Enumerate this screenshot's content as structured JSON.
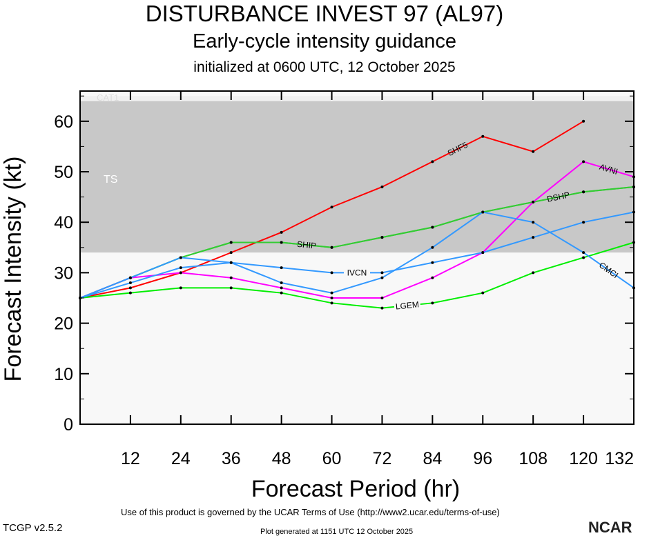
{
  "header": {
    "title": "DISTURBANCE INVEST 97 (AL97)",
    "subtitle": "Early-cycle intensity guidance",
    "init": "initialized at 0600 UTC, 12 October 2025"
  },
  "footer": {
    "terms": "Use of this product is governed by the UCAR Terms of Use (http://www2.ucar.edu/terms-of-use)",
    "generated": "Plot generated at 1151 UTC   12 October 2025",
    "version": "TCGP v2.5.2",
    "logo": "NCAR"
  },
  "chart_data": {
    "type": "line",
    "xlabel": "Forecast Period (hr)",
    "ylabel": "Forecast Intensity (kt)",
    "xlim": [
      0,
      132
    ],
    "ylim": [
      0,
      65
    ],
    "xticks": [
      12,
      24,
      36,
      48,
      60,
      72,
      84,
      96,
      108,
      120,
      132
    ],
    "yticks": [
      0,
      10,
      20,
      30,
      40,
      50,
      60
    ],
    "bands": [
      {
        "label": "TS",
        "from": 34,
        "to": 64,
        "color": "#c8c8c8"
      },
      {
        "label": "CAT1",
        "from": 64,
        "to": 65,
        "color": "#f0f0f0"
      }
    ],
    "series": [
      {
        "name": "SHF5",
        "color": "#ff0000",
        "x": [
          0,
          12,
          24,
          36,
          48,
          60,
          72,
          84,
          96,
          108,
          120
        ],
        "values": [
          25,
          27,
          30,
          34,
          38,
          43,
          47,
          52,
          57,
          54,
          60
        ]
      },
      {
        "name": "SHIP",
        "color": "#33cc33",
        "x": [
          0,
          12,
          24,
          36,
          48,
          60,
          72,
          84,
          96,
          108,
          120,
          132
        ],
        "values": [
          25,
          29,
          33,
          36,
          36,
          35,
          37,
          39,
          42,
          44,
          46,
          47
        ]
      },
      {
        "name": "DSHP",
        "color": "#33cc33",
        "x": [
          0,
          12,
          24,
          36,
          48,
          60,
          72,
          84,
          96,
          108,
          120,
          132
        ],
        "values": [
          25,
          29,
          33,
          36,
          36,
          35,
          37,
          39,
          42,
          44,
          46,
          47
        ]
      },
      {
        "name": "LGEM",
        "color": "#00ee00",
        "x": [
          0,
          12,
          24,
          36,
          48,
          60,
          72,
          84,
          96,
          108,
          120,
          132
        ],
        "values": [
          25,
          26,
          27,
          27,
          26,
          24,
          23,
          24,
          26,
          30,
          33,
          36
        ]
      },
      {
        "name": "AVNI",
        "color": "#ff00ff",
        "x": [
          0,
          12,
          24,
          36,
          48,
          60,
          72,
          84,
          96,
          108,
          120,
          132
        ],
        "values": [
          25,
          29,
          30,
          29,
          27,
          25,
          25,
          29,
          34,
          44,
          52,
          49
        ]
      },
      {
        "name": "IVCN",
        "color": "#3399ff",
        "x": [
          0,
          12,
          24,
          36,
          48,
          60,
          72,
          84,
          96,
          108,
          120,
          132
        ],
        "values": [
          25,
          28,
          31,
          32,
          31,
          30,
          30,
          32,
          34,
          37,
          40,
          42
        ]
      },
      {
        "name": "CMCI",
        "color": "#3399ff",
        "x": [
          0,
          12,
          24,
          36,
          48,
          60,
          72,
          84,
          96,
          108,
          120,
          132
        ],
        "values": [
          25,
          29,
          33,
          32,
          28,
          26,
          29,
          35,
          42,
          40,
          34,
          27
        ]
      }
    ]
  }
}
